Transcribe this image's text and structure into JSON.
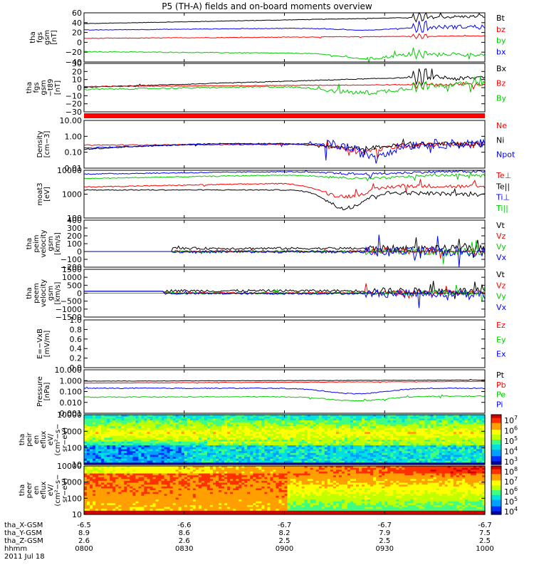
{
  "chart_data": {
    "type": "line",
    "title": "P5 (TH-A) fields and on-board moments overview",
    "x_ticks": [
      "0800",
      "0830",
      "0900",
      "0930",
      "1000"
    ],
    "xlim": [
      "0800",
      "1000"
    ],
    "footer": {
      "rows": [
        {
          "label": "tha_X-GSM",
          "values": [
            "-6.5",
            "-6.6",
            "-6.7",
            "-6.7",
            "-6.7"
          ]
        },
        {
          "label": "tha_Y-GSM",
          "values": [
            "8.9",
            "8.6",
            "8.2",
            "7.9",
            "7.5"
          ]
        },
        {
          "label": "tha_Z-GSM",
          "values": [
            "2.6",
            "2.6",
            "2.5",
            "2.5",
            "2.5"
          ]
        },
        {
          "label": "hhmm",
          "values": [
            "0800",
            "0830",
            "0900",
            "0930",
            "1000"
          ]
        }
      ],
      "date": "2011 Jul 18"
    },
    "panels": [
      {
        "ylabel": [
          "tha",
          "fgs",
          "gsm",
          "[nT]"
        ],
        "yticks": [
          "60",
          "40",
          "20",
          "0",
          "−20",
          "−40"
        ],
        "ylim": [
          -40,
          60
        ],
        "series": [
          {
            "name": "Bt",
            "color": "#000000"
          },
          {
            "name": "bz",
            "color": "#ff0000"
          },
          {
            "name": "by",
            "color": "#00cc00"
          },
          {
            "name": "bx",
            "color": "#0000ff"
          }
        ]
      },
      {
        "ylabel": [
          "tha",
          "fgs",
          "gsm",
          "−t89",
          "[nT]"
        ],
        "yticks": [
          "30",
          "20",
          "10",
          "0",
          "−10",
          "−20",
          "−30"
        ],
        "ylim": [
          -35,
          30
        ],
        "series": [
          {
            "name": "Bx",
            "color": "#000000"
          },
          {
            "name": "Bz",
            "color": "#ff0000"
          },
          {
            "name": "By",
            "color": "#00cc00"
          }
        ]
      },
      {
        "ylabel": [
          "Density",
          "[cm−3]"
        ],
        "yticks": [
          "10.00",
          "1.00",
          "0.10",
          "0.01"
        ],
        "ylim": [
          0.01,
          10
        ],
        "series": [
          {
            "name": "Ne",
            "color": "#ff0000"
          },
          {
            "name": "Ni",
            "color": "#000000"
          },
          {
            "name": "Npot",
            "color": "#0000ff"
          }
        ]
      },
      {
        "ylabel": [
          "moat3",
          "[eV]"
        ],
        "yticks": [
          "10000",
          "1000",
          "100"
        ],
        "ylim": [
          100,
          10000
        ],
        "series": [
          {
            "name": "Te⊥",
            "color": "#ff0000"
          },
          {
            "name": "Te||",
            "color": "#000000"
          },
          {
            "name": "Ti⊥",
            "color": "#0000ff"
          },
          {
            "name": "Ti||",
            "color": "#00cc00"
          }
        ]
      },
      {
        "ylabel": [
          "tha",
          "peim",
          "velocity",
          "gsm",
          "[km/s]"
        ],
        "yticks": [
          "400",
          "300",
          "200",
          "100",
          "0",
          "−100",
          "−200"
        ],
        "ylim": [
          -200,
          400
        ],
        "series": [
          {
            "name": "Vt",
            "color": "#000000"
          },
          {
            "name": "Vz",
            "color": "#ff0000"
          },
          {
            "name": "Vy",
            "color": "#00cc00"
          },
          {
            "name": "Vx",
            "color": "#0000ff"
          }
        ]
      },
      {
        "ylabel": [
          "tha",
          "peem",
          "velocity",
          "gsm",
          "[km/s]"
        ],
        "yticks": [
          "1500",
          "1000",
          "500",
          "0",
          "−500",
          "−1000",
          "−1500"
        ],
        "ylim": [
          -1500,
          1500
        ],
        "series": [
          {
            "name": "Vt",
            "color": "#000000"
          },
          {
            "name": "Vz",
            "color": "#ff0000"
          },
          {
            "name": "Vy",
            "color": "#00cc00"
          },
          {
            "name": "Vx",
            "color": "#0000ff"
          }
        ]
      },
      {
        "ylabel": [
          "E=−VxB",
          "[mV/m]"
        ],
        "yticks": [
          "1.0",
          "0.8",
          "0.6",
          "0.4",
          "0.2",
          "0.0"
        ],
        "ylim": [
          0,
          1
        ],
        "series": [
          {
            "name": "Ez",
            "color": "#ff0000"
          },
          {
            "name": "Ey",
            "color": "#00cc00"
          },
          {
            "name": "Ex",
            "color": "#0000ff"
          }
        ]
      },
      {
        "ylabel": [
          "Pressure",
          "[nPa]"
        ],
        "yticks": [
          "10.000",
          "1.000",
          "0.100",
          "0.010",
          "0.001"
        ],
        "ylim": [
          0.001,
          10
        ],
        "series": [
          {
            "name": "Pt",
            "color": "#000000"
          },
          {
            "name": "Pb",
            "color": "#ff0000"
          },
          {
            "name": "Pe",
            "color": "#00cc00"
          },
          {
            "name": "Pi",
            "color": "#0000ff"
          }
        ]
      },
      {
        "ylabel": [
          "tha",
          "peir",
          "en",
          "eflux",
          "eV/",
          "(cm²−s−",
          "sr−eV)"
        ],
        "yticks": [
          "10000",
          "1000",
          "100",
          "10"
        ],
        "ylim": [
          5,
          20000
        ],
        "colorbar": {
          "exponents": [
            "7",
            "6",
            "5",
            "4",
            "3"
          ]
        }
      },
      {
        "ylabel": [
          "tha",
          "peer",
          "en",
          "eflux",
          "eV/",
          "(cm²−s−",
          "sr−eV)"
        ],
        "yticks": [
          "10000",
          "1000",
          "100",
          "10"
        ],
        "ylim": [
          5,
          20000
        ],
        "colorbar": {
          "exponents": [
            "8",
            "7",
            "6",
            "5",
            "4"
          ]
        }
      }
    ]
  }
}
